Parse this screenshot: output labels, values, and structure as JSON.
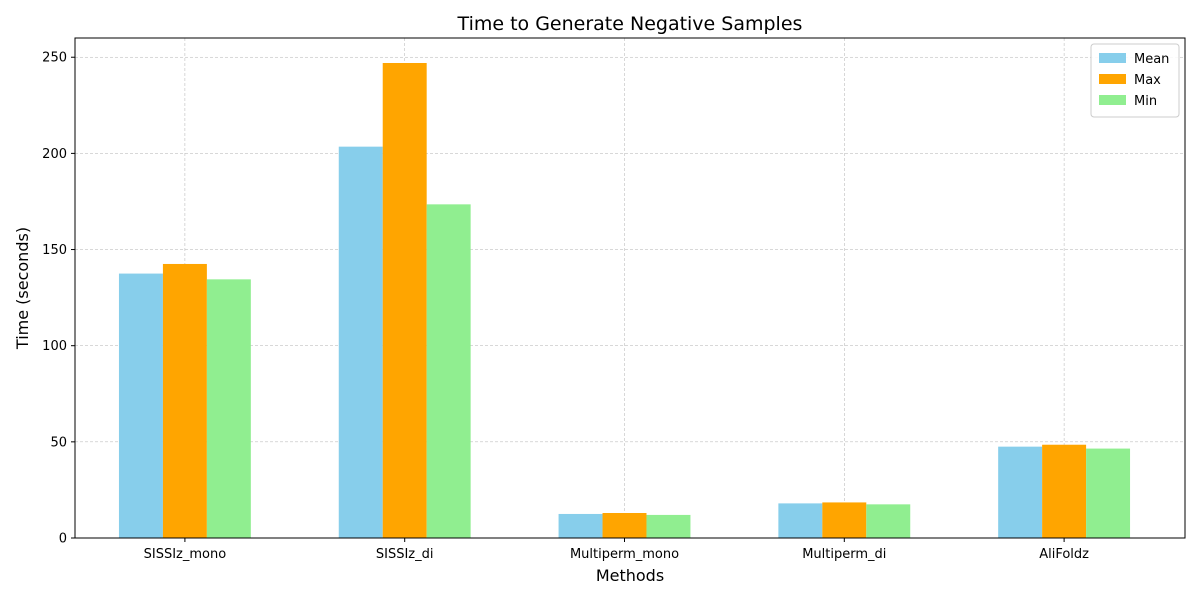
{
  "chart_data": {
    "type": "bar",
    "title": "Time to Generate Negative Samples",
    "xlabel": "Methods",
    "ylabel": "Time (seconds)",
    "categories": [
      "SISSIz_mono",
      "SISSIz_di",
      "Multiperm_mono",
      "Multiperm_di",
      "AliFoldz"
    ],
    "series": [
      {
        "name": "Mean",
        "color": "#87ceeb",
        "values": [
          137.5,
          203.5,
          12.5,
          18,
          47.5
        ]
      },
      {
        "name": "Max",
        "color": "#ffa500",
        "values": [
          142.5,
          247,
          13,
          18.5,
          48.5
        ]
      },
      {
        "name": "Min",
        "color": "#90ee90",
        "values": [
          134.5,
          173.5,
          12,
          17.5,
          46.5
        ]
      }
    ],
    "ylim": [
      0,
      260
    ],
    "yticks": [
      0,
      50,
      100,
      150,
      200,
      250
    ],
    "grid": true,
    "legend_position": "top-right"
  }
}
